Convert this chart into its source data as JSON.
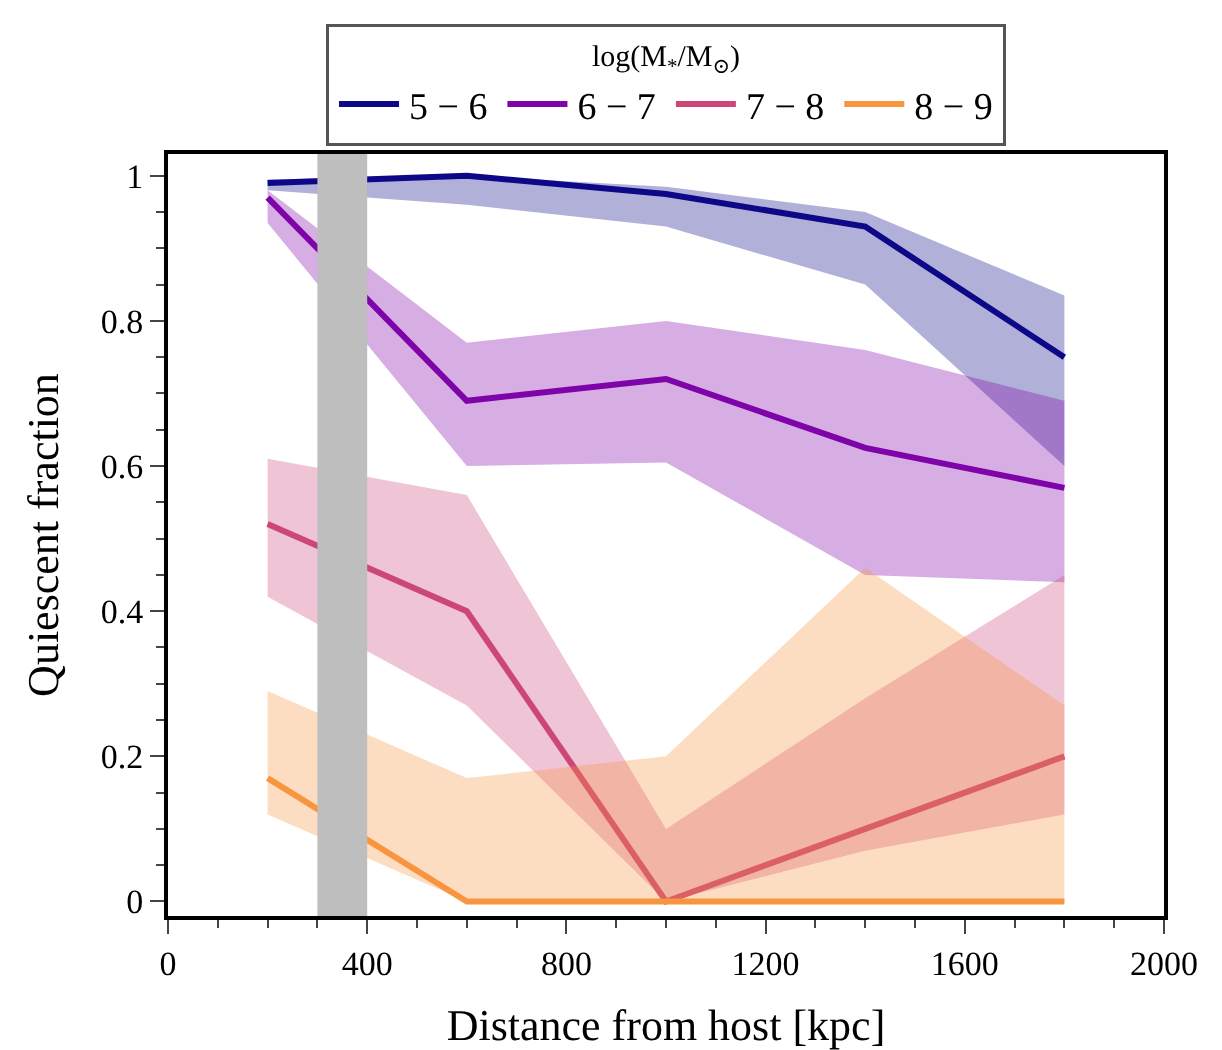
{
  "chart_data": {
    "type": "line",
    "xlabel": "Distance from host [kpc]",
    "ylabel": "Quiescent fraction",
    "legend_title": "log(M$_{*}$/M$_{⊙}$)",
    "legend": "top",
    "grid": false,
    "marker": "none",
    "line_style": "solid",
    "x": [
      200,
      600,
      1000,
      1400,
      1800
    ],
    "xlim": [
      0,
      2000
    ],
    "xticks": [
      0,
      400,
      800,
      1200,
      1600,
      2000
    ],
    "ylim": [
      -0.02,
      1.03
    ],
    "yticks": [
      0,
      0.2,
      0.4,
      0.6,
      0.8,
      1
    ],
    "series": [
      {
        "name": "5 − 6",
        "color": "#0d0887",
        "values": [
          0.99,
          1.0,
          0.975,
          0.93,
          0.75
        ],
        "lower": [
          0.98,
          0.96,
          0.93,
          0.85,
          0.6
        ],
        "upper": [
          0.995,
          1.0,
          0.985,
          0.95,
          0.835
        ]
      },
      {
        "name": "6 − 7",
        "color": "#7e03a8",
        "values": [
          0.97,
          0.69,
          0.72,
          0.625,
          0.57
        ],
        "lower": [
          0.935,
          0.6,
          0.605,
          0.45,
          0.44
        ],
        "upper": [
          0.98,
          0.77,
          0.8,
          0.76,
          0.69
        ]
      },
      {
        "name": "7 − 8",
        "color": "#cc4778",
        "values": [
          0.52,
          0.4,
          0,
          0.1,
          0.2
        ],
        "lower": [
          0.42,
          0.27,
          0,
          0.07,
          0.12
        ],
        "upper": [
          0.61,
          0.56,
          0.1,
          0.28,
          0.45
        ]
      },
      {
        "name": "8 − 9",
        "color": "#f89540",
        "values": [
          0.17,
          0,
          0,
          0,
          0
        ],
        "lower": [
          0.12,
          0,
          0,
          0,
          0
        ],
        "upper": [
          0.29,
          0.17,
          0.2,
          0.46,
          0.27
        ]
      }
    ],
    "bands": [
      {
        "axis": "x",
        "from": 300,
        "to": 400,
        "color": "#bebebe"
      }
    ]
  }
}
